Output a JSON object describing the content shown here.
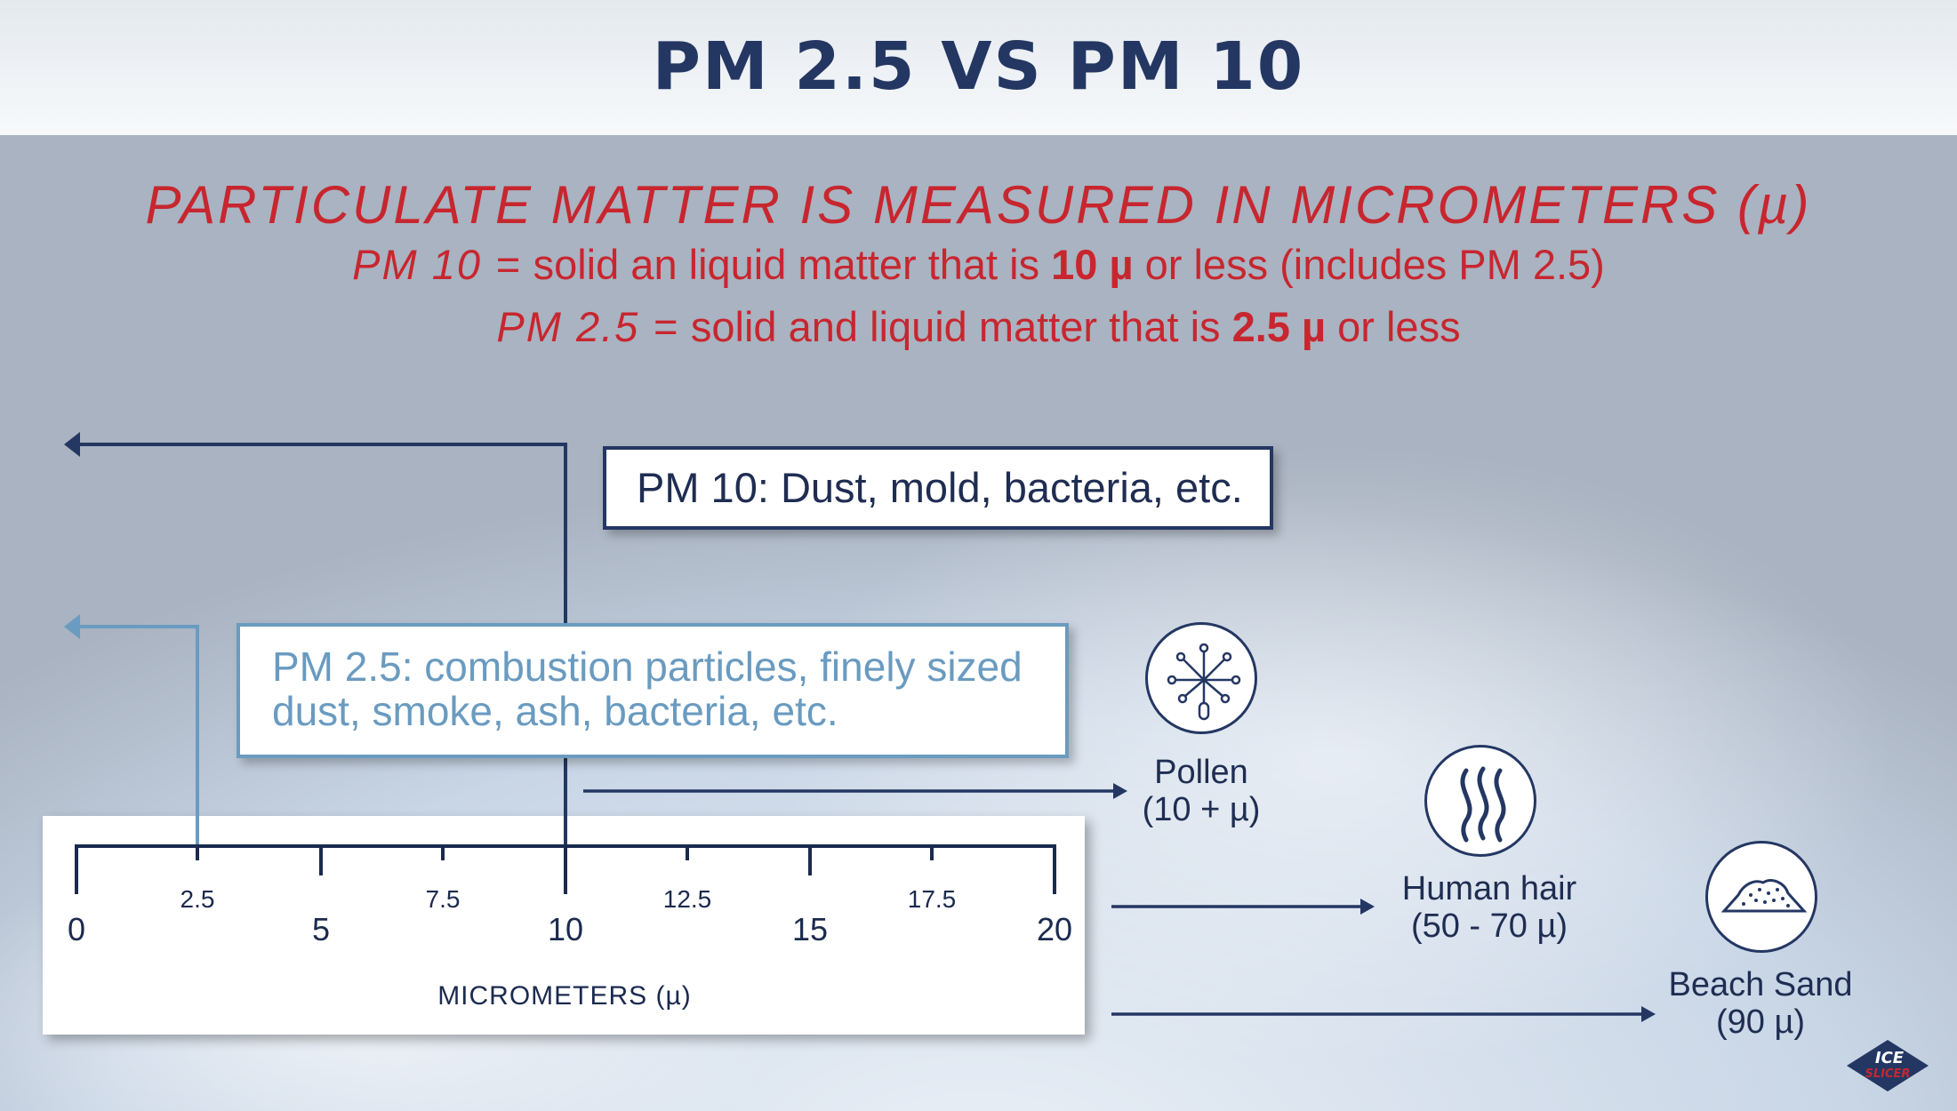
{
  "header": {
    "title": "PM 2.5 VS PM 10"
  },
  "intro": {
    "subtitle": "PARTICULATE MATTER IS MEASURED IN MICROMETERS (µ)",
    "pm10_term": "PM 10 =",
    "pm10_before": "solid an liquid matter that is",
    "pm10_bold": "10 µ",
    "pm10_after": "or less (includes PM 2.5)",
    "pm25_term": "PM 2.5 =",
    "pm25_before": "solid and liquid matter that is",
    "pm25_bold": "2.5 µ",
    "pm25_after": "or less"
  },
  "boxes": {
    "pm10": "PM 10: Dust, mold, bacteria, etc.",
    "pm25_line1": "PM 2.5: combustion particles, finely sized",
    "pm25_line2": "dust, smoke, ash, bacteria, etc."
  },
  "scale": {
    "major_ticks": [
      "0",
      "5",
      "10",
      "15",
      "20"
    ],
    "minor_ticks": [
      "2.5",
      "7.5",
      "12.5",
      "17.5"
    ],
    "axis_label": "MICROMETERS (µ)"
  },
  "particles": [
    {
      "name": "Pollen",
      "size": "(10 + µ)",
      "icon": "pollen-icon"
    },
    {
      "name": "Human hair",
      "size": "(50 - 70 µ)",
      "icon": "hair-icon"
    },
    {
      "name": "Beach Sand",
      "size": "(90 µ)",
      "icon": "sand-icon"
    }
  ],
  "logo": {
    "line1": "ICE",
    "line2": "SLICER"
  },
  "colors": {
    "navy": "#243763",
    "red": "#c8262f",
    "light_blue": "#6a9bc0"
  }
}
